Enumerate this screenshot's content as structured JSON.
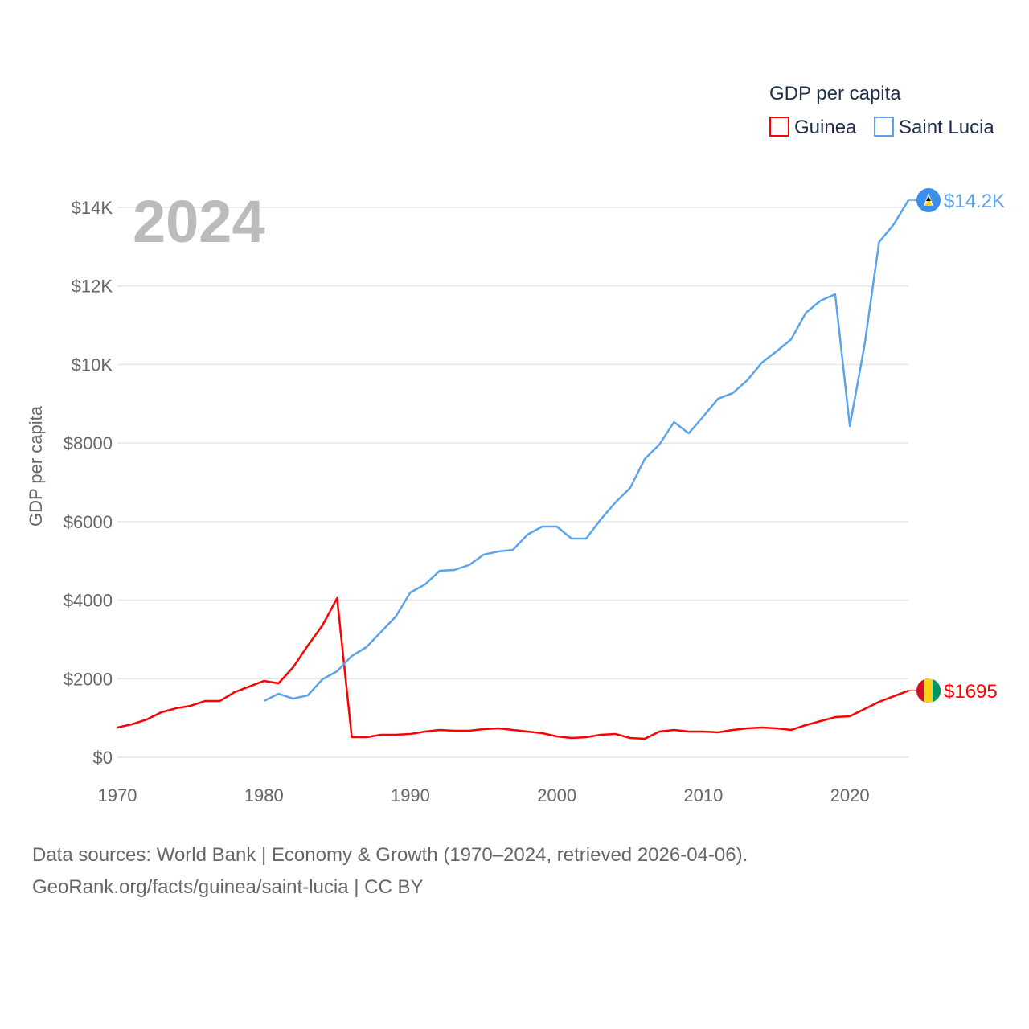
{
  "chart_data": {
    "type": "line",
    "title": "GDP per capita",
    "year_label": "2024",
    "ylabel": "GDP per capita",
    "xlabel": "",
    "xlim": [
      1970,
      2024
    ],
    "ylim": [
      0,
      14000
    ],
    "grid": true,
    "legend_position": "top-right",
    "x_ticks": [
      1970,
      1980,
      1990,
      2000,
      2010,
      2020
    ],
    "x_tick_labels": [
      "1970",
      "1980",
      "1990",
      "2000",
      "2010",
      "2020"
    ],
    "y_ticks": [
      0,
      2000,
      4000,
      6000,
      8000,
      10000,
      12000,
      14000
    ],
    "y_tick_labels": [
      "$0",
      "$2000",
      "$4000",
      "$6000",
      "$8000",
      "$10K",
      "$12K",
      "$14K"
    ],
    "series": [
      {
        "name": "Guinea",
        "color": "#ff0000",
        "start_year": 1970,
        "end_label": "$1695",
        "flag": "guinea-flag",
        "values": [
          757,
          840,
          962,
          1146,
          1248,
          1310,
          1433,
          1433,
          1658,
          1800,
          1944,
          1883,
          2292,
          2845,
          3357,
          4052,
          512,
          512,
          573,
          573,
          594,
          655,
          696,
          675,
          675,
          716,
          737,
          696,
          655,
          614,
          532,
          491,
          512,
          573,
          594,
          491,
          471,
          655,
          696,
          655,
          655,
          635,
          696,
          737,
          757,
          737,
          696,
          819,
          921,
          1023,
          1044,
          1228,
          1412,
          1555,
          1695
        ]
      },
      {
        "name": "Saint Lucia",
        "color": "#5ba4ec",
        "start_year": 1980,
        "end_label": "$14.2K",
        "flag": "saint-lucia-flag",
        "values": [
          1433,
          1617,
          1494,
          1576,
          1985,
          2190,
          2579,
          2804,
          3193,
          3582,
          4196,
          4400,
          4748,
          4769,
          4892,
          5158,
          5239,
          5280,
          5669,
          5874,
          5874,
          5567,
          5567,
          6058,
          6488,
          6856,
          7593,
          7962,
          8535,
          8248,
          8678,
          9128,
          9271,
          9599,
          10049,
          10336,
          10643,
          11318,
          11625,
          11789,
          8432,
          10479,
          13119,
          13569,
          14183
        ]
      }
    ]
  },
  "footer": {
    "line1": "Data sources: World Bank | Economy & Growth (1970–2024, retrieved 2026-04-06).",
    "line2": "GeoRank.org/facts/guinea/saint-lucia | CC BY"
  }
}
